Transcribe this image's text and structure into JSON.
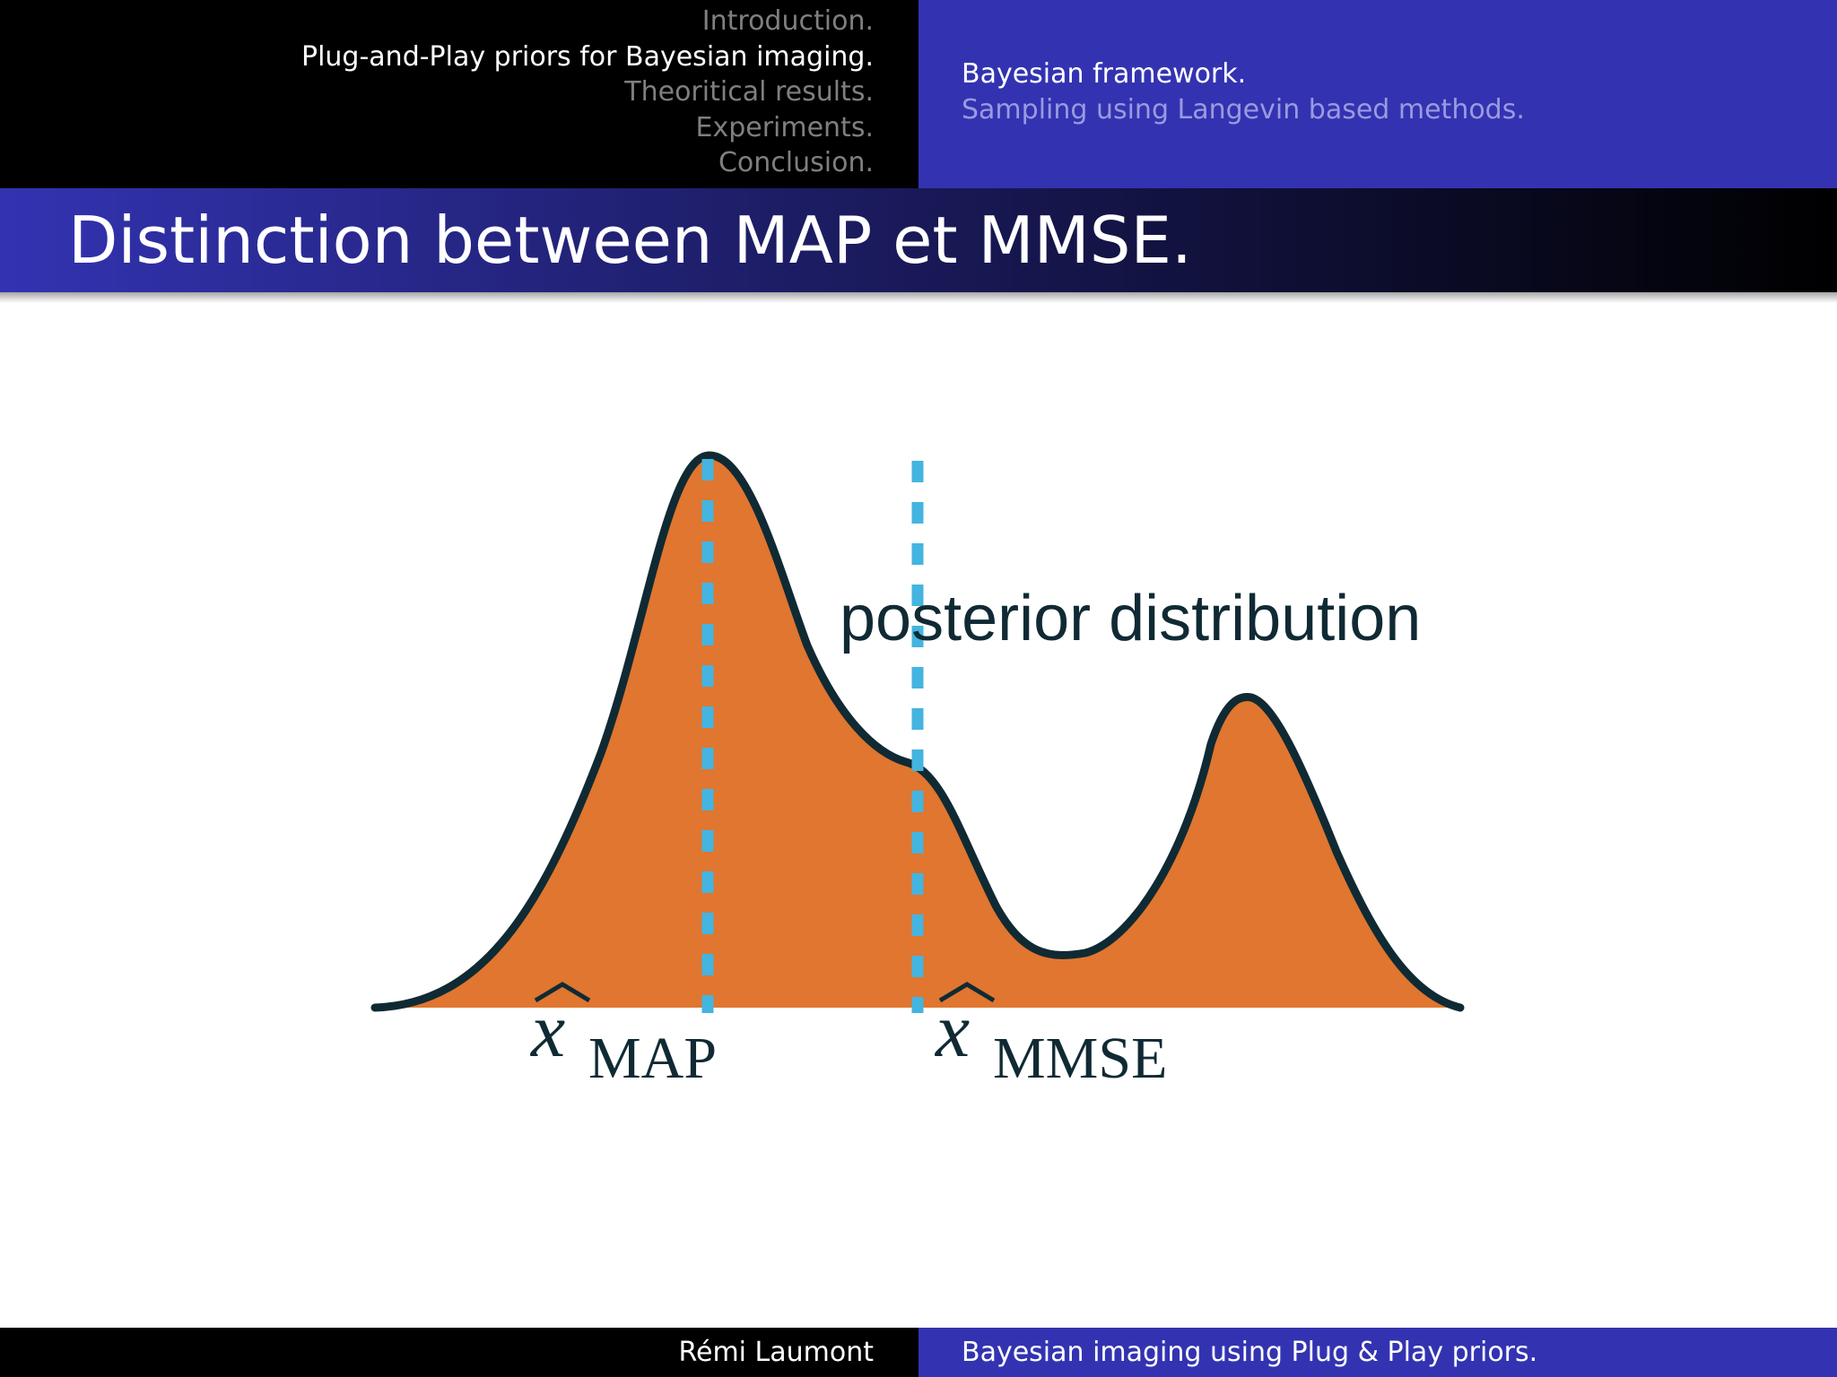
{
  "header": {
    "sections": [
      {
        "label": "Introduction.",
        "active": false
      },
      {
        "label": "Plug-and-Play priors for Bayesian imaging.",
        "active": true
      },
      {
        "label": "Theoritical results.",
        "active": false
      },
      {
        "label": "Experiments.",
        "active": false
      },
      {
        "label": "Conclusion.",
        "active": false
      }
    ],
    "subsections": [
      {
        "label": "Bayesian framework.",
        "active": true
      },
      {
        "label": "Sampling using Langevin based methods.",
        "active": false
      }
    ]
  },
  "frame": {
    "title": "Distinction between MAP et MMSE."
  },
  "figure": {
    "annotation": "posterior distribution",
    "map_label": {
      "base": "x",
      "subscript": "MAP"
    },
    "mmse_label": {
      "base": "x",
      "subscript": "MMSE"
    },
    "colors": {
      "fill": "#e0762f",
      "outline": "#102a34",
      "marker": "#44b4e0"
    }
  },
  "footer": {
    "author": "Rémi Laumont",
    "talk_title": "Bayesian imaging using Plug & Play priors."
  }
}
